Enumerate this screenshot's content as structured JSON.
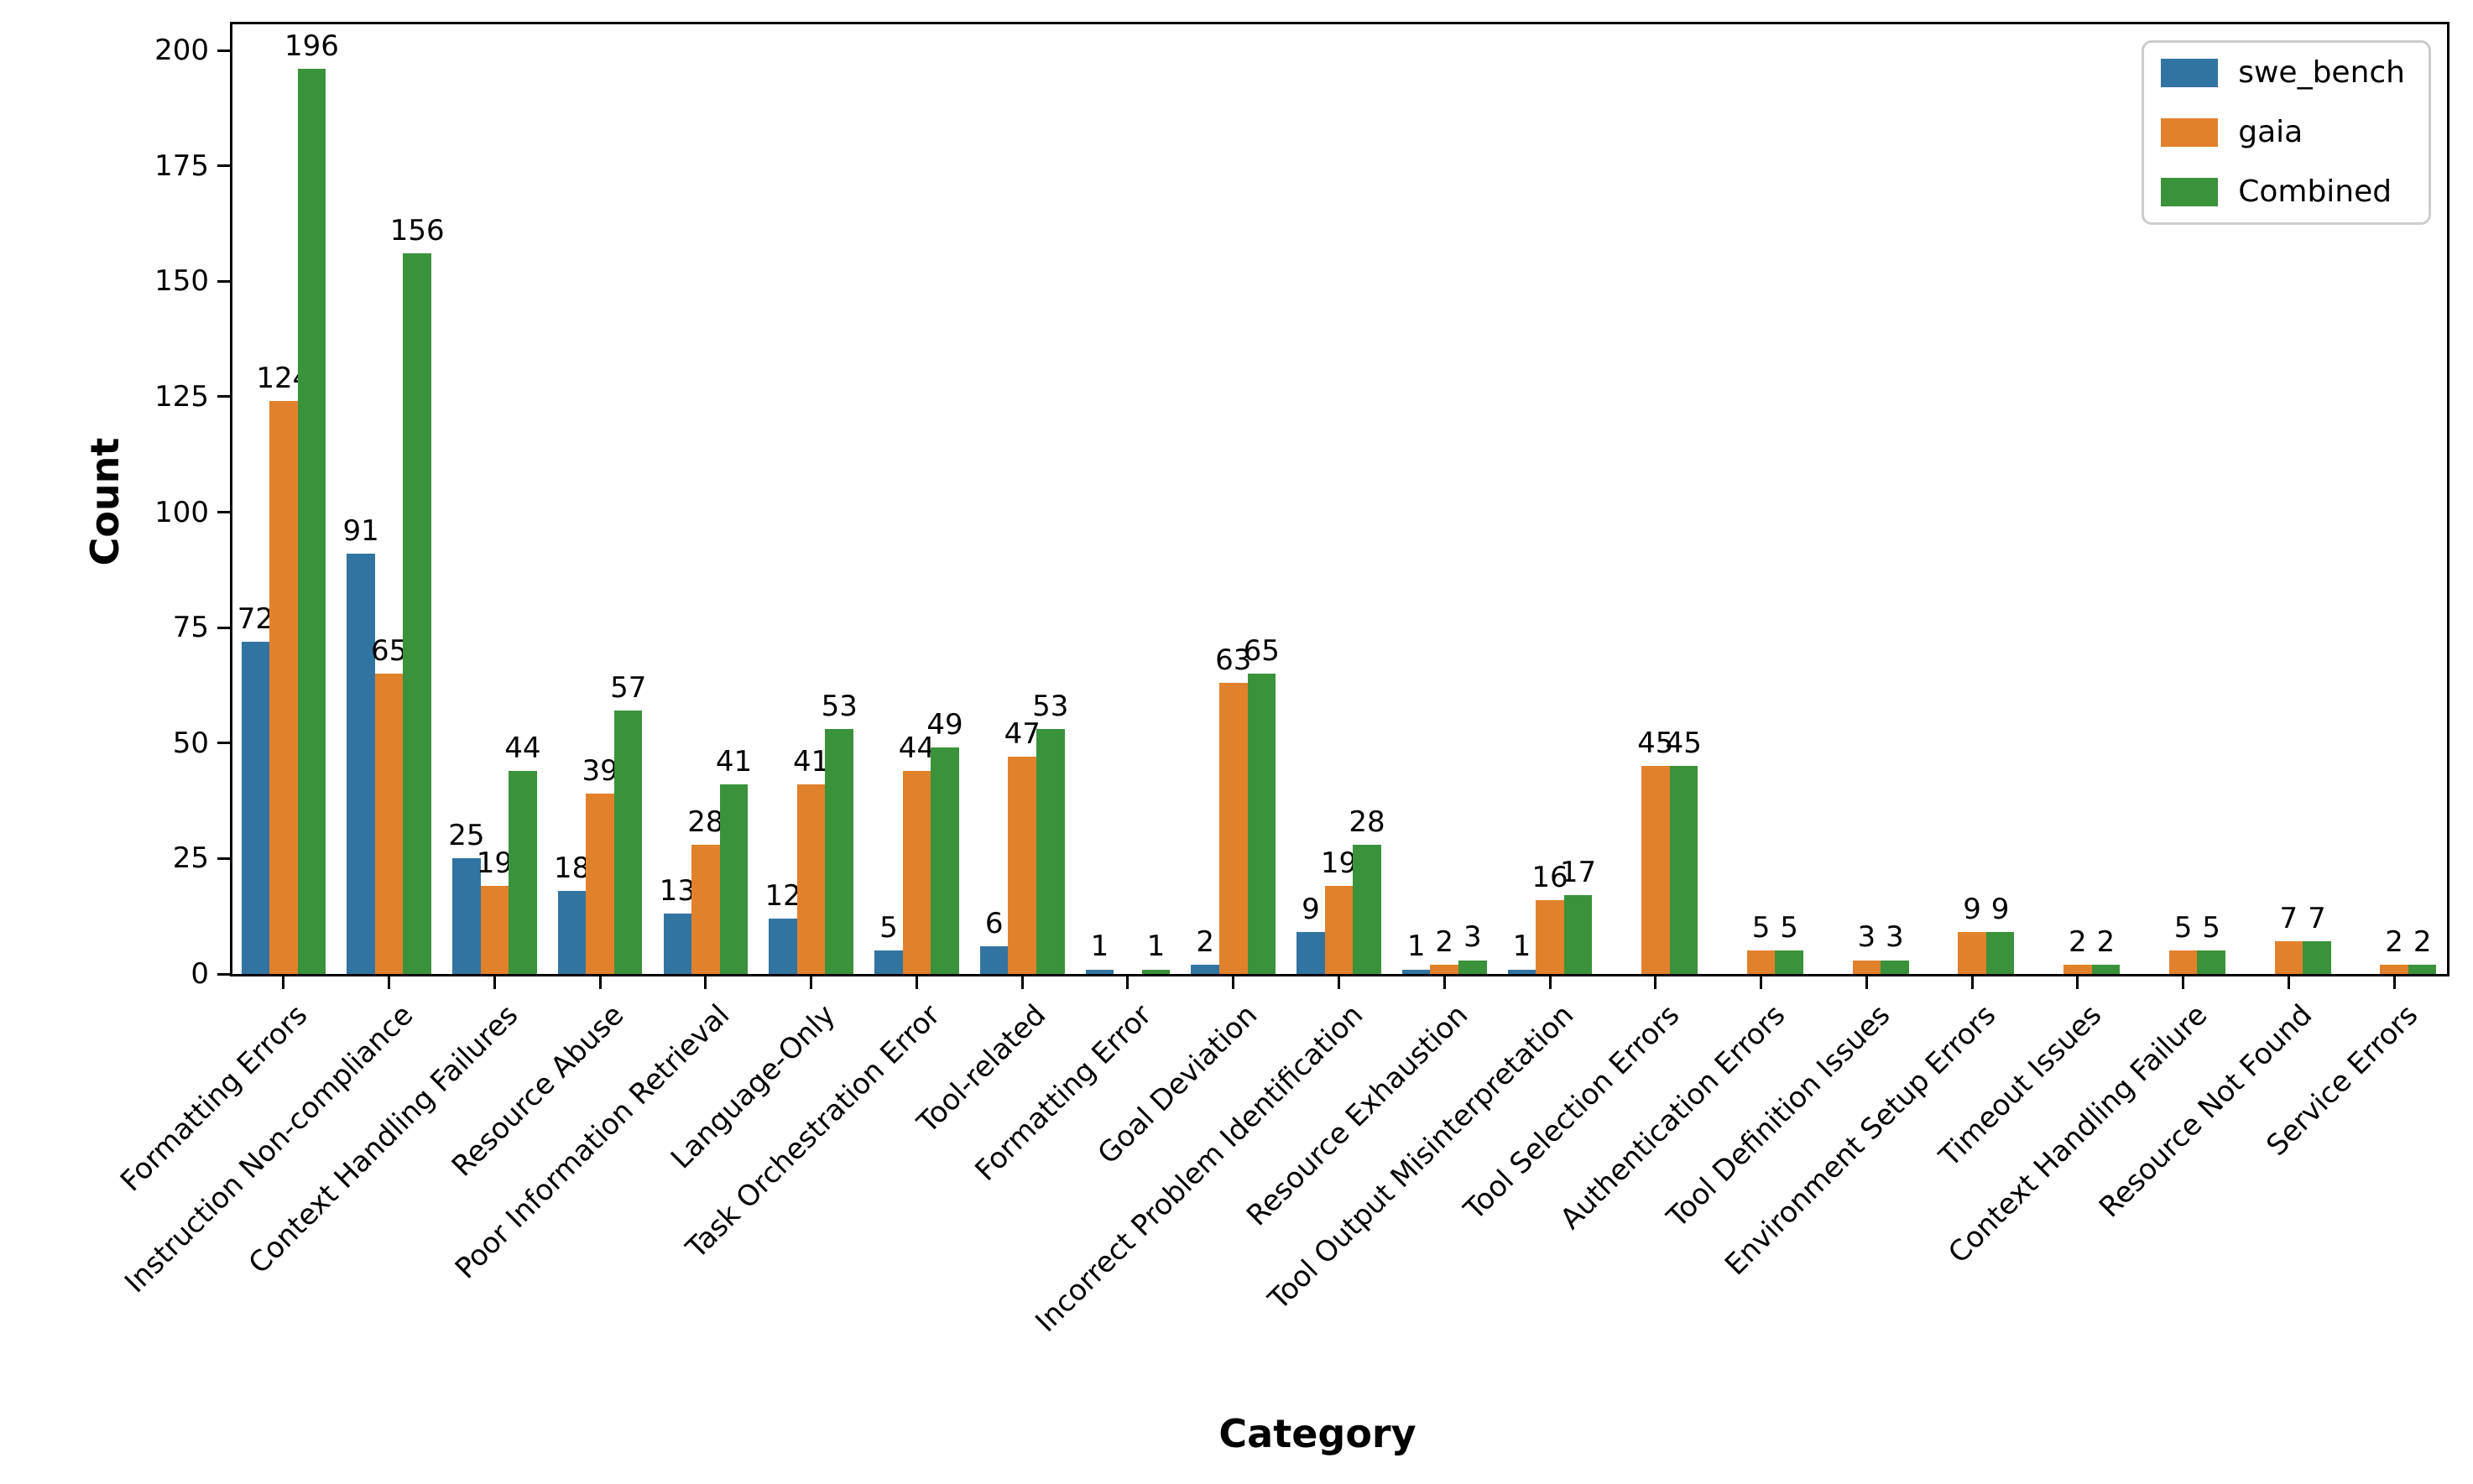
{
  "chart_data": {
    "type": "bar",
    "title": "",
    "xlabel": "Category",
    "ylabel": "Count",
    "ylim": [
      0,
      205.6
    ],
    "yticks": [
      0,
      25,
      50,
      75,
      100,
      125,
      150,
      175,
      200
    ],
    "grid": false,
    "legend_position": "upper-right",
    "bar_value_labels": true,
    "categories": [
      "Formatting Errors",
      "Instruction Non-compliance",
      "Context Handling Failures",
      "Resource Abuse",
      "Poor Information Retrieval",
      "Language-Only",
      "Task Orchestration Error",
      "Tool-related",
      "Formatting Error",
      "Goal Deviation",
      "Incorrect Problem Identification",
      "Resource Exhaustion",
      "Tool Output Misinterpretation",
      "Tool Selection Errors",
      "Authentication Errors",
      "Tool Definition Issues",
      "Environment Setup Errors",
      "Timeout Issues",
      "Context Handling Failure",
      "Resource Not Found",
      "Service Errors"
    ],
    "series": [
      {
        "name": "swe_bench",
        "color": "#3274A1",
        "values": [
          72,
          91,
          25,
          18,
          13,
          12,
          5,
          6,
          1,
          2,
          9,
          1,
          1,
          0,
          0,
          0,
          0,
          0,
          0,
          0,
          0
        ]
      },
      {
        "name": "gaia",
        "color": "#E1812C",
        "values": [
          124,
          65,
          19,
          39,
          28,
          41,
          44,
          47,
          0,
          63,
          19,
          2,
          16,
          45,
          5,
          3,
          9,
          2,
          5,
          7,
          2
        ]
      },
      {
        "name": "Combined",
        "color": "#3A923A",
        "values": [
          196,
          156,
          44,
          57,
          41,
          53,
          49,
          53,
          1,
          65,
          28,
          3,
          17,
          45,
          5,
          3,
          9,
          2,
          5,
          7,
          2
        ]
      }
    ]
  }
}
